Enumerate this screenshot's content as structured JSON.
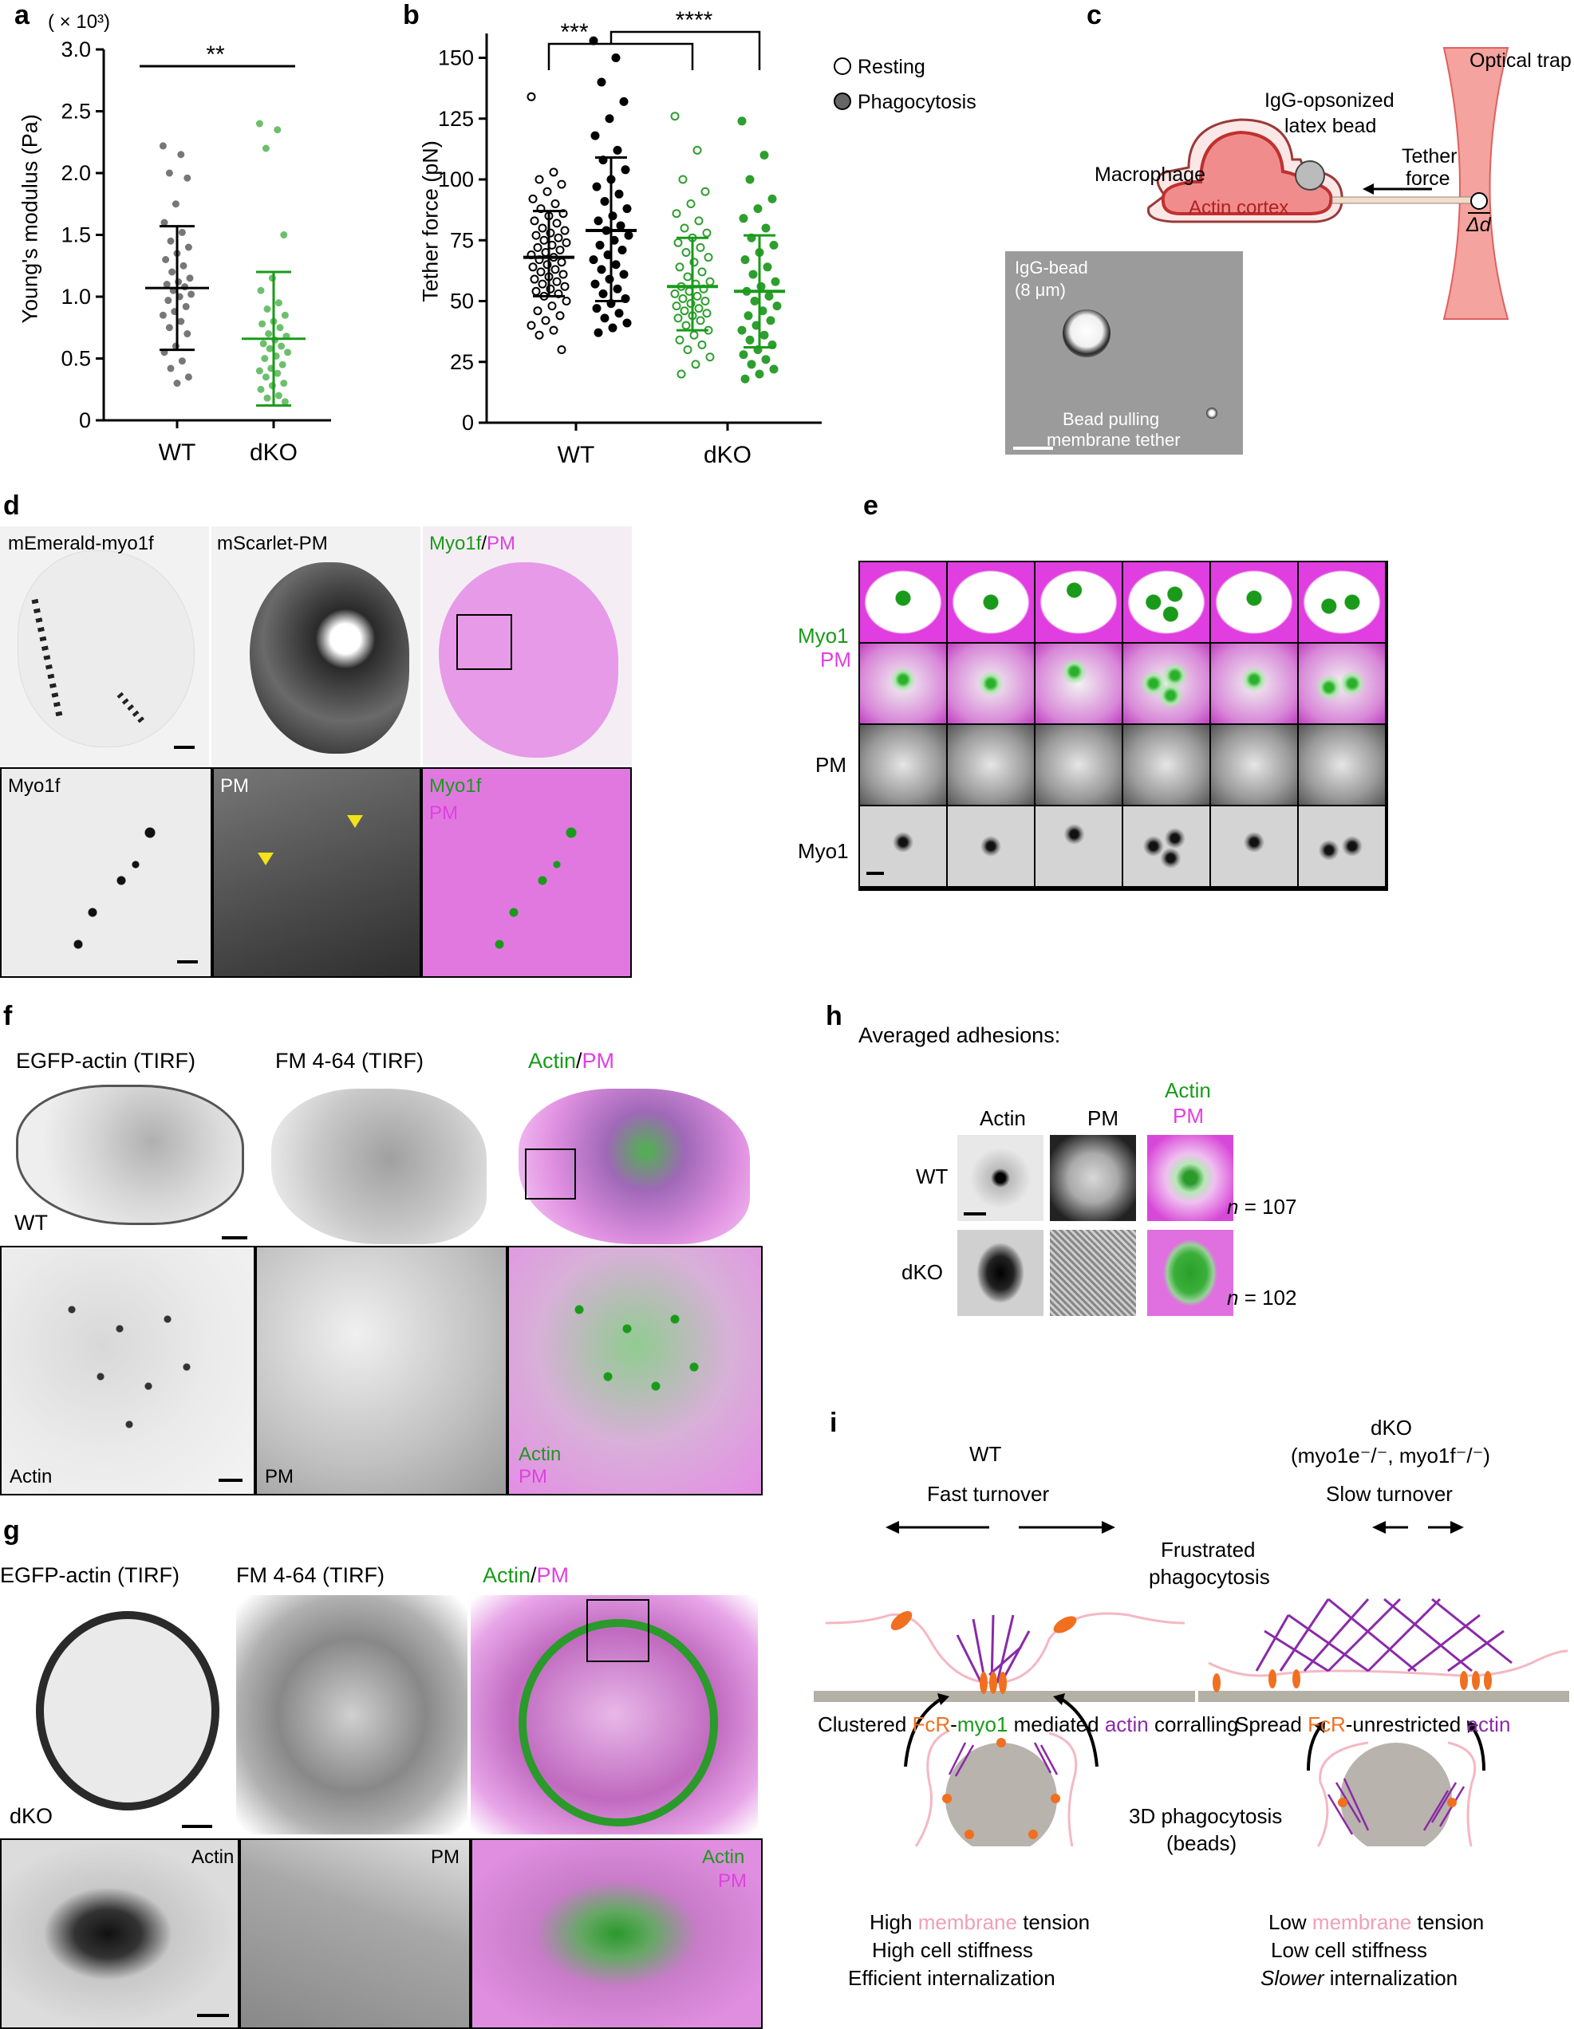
{
  "panels": {
    "a": "a",
    "b": "b",
    "c": "c",
    "d": "d",
    "e": "e",
    "f": "f",
    "g": "g",
    "h": "h",
    "i": "i"
  },
  "panel_a": {
    "multiplier": "( × 10³)",
    "ylabel": "Young's modulus (Pa)",
    "yticks": [
      "0",
      "0.5",
      "1.0",
      "1.5",
      "2.0",
      "2.5",
      "3.0"
    ],
    "categories": [
      "WT",
      "dKO"
    ],
    "significance": "**"
  },
  "panel_b": {
    "ylabel": "Tether force (pN)",
    "yticks": [
      "0",
      "25",
      "50",
      "75",
      "100",
      "125",
      "150"
    ],
    "categories": [
      "WT",
      "dKO"
    ],
    "sig1": "***",
    "sig2": "****",
    "legend": [
      "Resting",
      "Phagocytosis"
    ]
  },
  "panel_c": {
    "optical_trap": "Optical trap",
    "bead_label_1": "IgG-opsonized",
    "bead_label_2": "latex bead",
    "macrophage": "Macrophage",
    "actin_cortex": "Actin cortex",
    "tether_1": "Tether",
    "tether_2": "force",
    "delta": "Δd",
    "micro_bead_1": "IgG-bead",
    "micro_bead_2": "(8 μm)",
    "micro_tether_1": "Bead pulling",
    "micro_tether_2": "membrane tether"
  },
  "panel_d": {
    "top_labels": [
      "mEmerald-myo1f",
      "mScarlet-PM"
    ],
    "merge_green": "Myo1f",
    "merge_sep": "/",
    "merge_pink": "PM",
    "bottom_labels": [
      "Myo1f",
      "PM"
    ],
    "bottom_merge_green": "Myo1f",
    "bottom_merge_pink": "PM"
  },
  "panel_e": {
    "row_green": "Myo1",
    "row_pink": "PM",
    "row_pm": "PM",
    "row_myo1": "Myo1"
  },
  "panel_f": {
    "labels": [
      "EGFP-actin (TIRF)",
      "FM 4-64 (TIRF)"
    ],
    "merge_green": "Actin",
    "merge_sep": "/",
    "merge_pink": "PM",
    "genotype": "WT",
    "bottom_labels": [
      "Actin",
      "PM"
    ],
    "bottom_merge_green": "Actin",
    "bottom_merge_pink": "PM"
  },
  "panel_g": {
    "labels": [
      "EGFP-actin (TIRF)",
      "FM 4-64 (TIRF)"
    ],
    "merge_green": "Actin",
    "merge_sep": "/",
    "merge_pink": "PM",
    "genotype": "dKO",
    "bottom_labels": [
      "Actin",
      "PM"
    ],
    "bottom_merge_green": "Actin",
    "bottom_merge_pink": "PM"
  },
  "panel_h": {
    "title": "Averaged adhesions:",
    "col_actin": "Actin",
    "col_pm": "PM",
    "col_merge_green": "Actin",
    "col_merge_pink": "PM",
    "rows": [
      {
        "genotype": "WT",
        "n_label": "n",
        "n_value": " = 107"
      },
      {
        "genotype": "dKO",
        "n_label": "n",
        "n_value": " = 102"
      }
    ]
  },
  "panel_i": {
    "wt_title": "WT",
    "dko_title_1": "dKO",
    "dko_title_2": "(myo1e⁻/⁻, myo1f⁻/⁻)",
    "fast_turnover": "Fast turnover",
    "slow_turnover": "Slow turnover",
    "frustrated_1": "Frustrated",
    "frustrated_2": "phagocytosis",
    "wt_caption": {
      "p1": "Clustered ",
      "p2": "FcR",
      "p3": "-",
      "p4": "myo1",
      "p5": " mediated ",
      "p6": "actin",
      "p7": " corralling"
    },
    "dko_caption": {
      "p1": "Spread ",
      "p2": "FcR",
      "p3": "-unrestricted ",
      "p4": "actin"
    },
    "threed_1": "3D phagocytosis",
    "threed_2": "(beads)",
    "wt_bottom": {
      "l1a": "High ",
      "l1b": "membrane",
      "l1c": " tension",
      "l2": "High cell stiffness",
      "l3": "Efficient internalization"
    },
    "dko_bottom": {
      "l1a": "Low ",
      "l1b": "membrane",
      "l1c": " tension",
      "l2": "Low cell stiffness",
      "l3": "Slower",
      "l3b": " internalization"
    }
  },
  "chart_data": [
    {
      "type": "scatter",
      "panel": "a",
      "ylabel": "Young's modulus (Pa)",
      "multiplier": "× 10³",
      "ylim": [
        0,
        3.0
      ],
      "categories": [
        "WT",
        "dKO"
      ],
      "series": [
        {
          "category": "WT",
          "color": "#777777",
          "mean": 1.07,
          "sd_low": 0.57,
          "sd_high": 1.57,
          "values": [
            2.22,
            2.15,
            2.0,
            1.96,
            1.75,
            1.6,
            1.52,
            1.45,
            1.4,
            1.35,
            1.3,
            1.25,
            1.2,
            1.15,
            1.12,
            1.1,
            1.08,
            1.05,
            1.02,
            1.0,
            0.97,
            0.92,
            0.88,
            0.85,
            0.8,
            0.75,
            0.7,
            0.6,
            0.55,
            0.48,
            0.42,
            0.35,
            0.3
          ]
        },
        {
          "category": "dKO",
          "color": "#6dbf6d",
          "mean": 0.66,
          "sd_low": 0.12,
          "sd_high": 1.2,
          "values": [
            2.4,
            2.35,
            2.2,
            1.5,
            1.15,
            1.05,
            0.95,
            0.9,
            0.85,
            0.8,
            0.78,
            0.75,
            0.7,
            0.68,
            0.65,
            0.62,
            0.6,
            0.58,
            0.55,
            0.52,
            0.5,
            0.45,
            0.42,
            0.4,
            0.38,
            0.35,
            0.3,
            0.28,
            0.25,
            0.2,
            0.18,
            0.15
          ]
        }
      ],
      "annotation": "**"
    },
    {
      "type": "scatter",
      "panel": "b",
      "ylabel": "Tether force (pN)",
      "ylim": [
        0,
        160
      ],
      "categories": [
        "WT",
        "dKO"
      ],
      "series": [
        {
          "name": "Resting",
          "category": "WT",
          "color": "#000000",
          "filled": false,
          "mean": 68,
          "sd_low": 52,
          "sd_high": 87,
          "values": [
            134,
            103,
            100,
            98,
            95,
            92,
            90,
            88,
            86,
            85,
            83,
            82,
            80,
            79,
            78,
            77,
            76,
            75,
            74,
            73,
            72,
            71,
            70,
            69,
            68,
            67,
            66,
            65,
            64,
            63,
            62,
            61,
            60,
            59,
            58,
            57,
            56,
            55,
            54,
            53,
            52,
            50,
            48,
            46,
            44,
            42,
            40,
            38,
            36,
            30
          ]
        },
        {
          "name": "Phagocytosis",
          "category": "WT",
          "color": "#000000",
          "filled": true,
          "mean": 79,
          "sd_low": 50,
          "sd_high": 109,
          "values": [
            157,
            150,
            140,
            132,
            125,
            118,
            112,
            108,
            104,
            100,
            97,
            94,
            91,
            88,
            85,
            83,
            81,
            79,
            77,
            75,
            73,
            71,
            69,
            67,
            65,
            63,
            61,
            59,
            57,
            55,
            53,
            51,
            49,
            47,
            45,
            43,
            41,
            39,
            37
          ]
        },
        {
          "name": "Resting",
          "category": "dKO",
          "color": "#2e9e2e",
          "filled": false,
          "mean": 56,
          "sd_low": 38,
          "sd_high": 76,
          "values": [
            126,
            112,
            100,
            95,
            90,
            86,
            83,
            80,
            78,
            76,
            74,
            72,
            70,
            68,
            66,
            64,
            62,
            60,
            58,
            57,
            56,
            55,
            54,
            53,
            52,
            51,
            50,
            49,
            48,
            47,
            46,
            45,
            44,
            43,
            42,
            40,
            38,
            36,
            34,
            32,
            30,
            27,
            24,
            20
          ]
        },
        {
          "name": "Phagocytosis",
          "category": "dKO",
          "color": "#2e9e2e",
          "filled": true,
          "mean": 54,
          "sd_low": 31,
          "sd_high": 77,
          "values": [
            124,
            110,
            100,
            92,
            88,
            84,
            80,
            76,
            73,
            70,
            67,
            64,
            61,
            58,
            56,
            54,
            52,
            50,
            48,
            46,
            44,
            42,
            40,
            38,
            36,
            34,
            32,
            30,
            28,
            26,
            24,
            22,
            20,
            18
          ]
        }
      ],
      "annotations": [
        "***",
        "****"
      ],
      "legend_position": "right"
    }
  ]
}
